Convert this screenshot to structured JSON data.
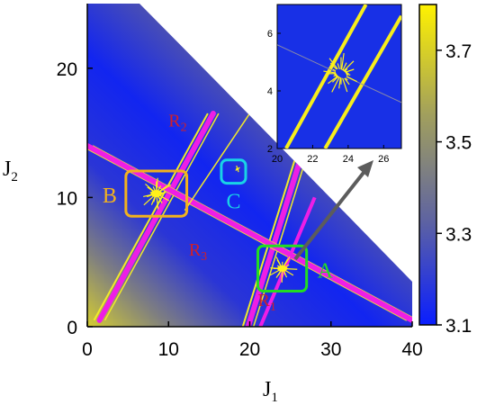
{
  "chart_data": {
    "type": "heatmap",
    "title": "",
    "xlabel": "J",
    "xlabel_sub": "1",
    "ylabel": "J",
    "ylabel_sub": "2",
    "xlim": [
      0,
      40
    ],
    "ylim": [
      0,
      25
    ],
    "xticks": [
      "0",
      "10",
      "20",
      "30",
      "40"
    ],
    "yticks": [
      "0",
      "10",
      "20"
    ],
    "colorbar": {
      "range": [
        3.1,
        3.8
      ],
      "ticks": [
        "3.1",
        "3.3",
        "3.5",
        "3.7"
      ],
      "colors": [
        "#0a1eff",
        "#5f64a0",
        "#a2a05c",
        "#fff200"
      ]
    },
    "resonance_lines": [
      {
        "name": "R",
        "sub": "1",
        "points": [
          [
            19.8,
            0
          ],
          [
            27,
            14.5
          ]
        ]
      },
      {
        "name": "R",
        "sub": "2",
        "points": [
          [
            1.5,
            0.5
          ],
          [
            15.5,
            16.5
          ]
        ]
      },
      {
        "name": "R",
        "sub": "3",
        "points": [
          [
            0,
            14
          ],
          [
            40,
            0.5
          ]
        ]
      }
    ],
    "regions": [
      {
        "label": "A",
        "center": [
          24,
          4.5
        ],
        "size": [
          6,
          3.5
        ],
        "color": "#22dd22"
      },
      {
        "label": "B",
        "center": [
          8.5,
          10.3
        ],
        "size": [
          7.5,
          3.5
        ],
        "color": "#f2b21e"
      },
      {
        "label": "C",
        "center": [
          18,
          12
        ],
        "size": [
          3,
          1.8
        ],
        "color": "#19d3e6"
      }
    ],
    "inset": {
      "region": "A",
      "xlim": [
        20,
        27
      ],
      "ylim": [
        2,
        7
      ],
      "xticks": [
        "20",
        "22",
        "24",
        "26"
      ],
      "yticks": [
        "2",
        "4",
        "6"
      ]
    }
  }
}
